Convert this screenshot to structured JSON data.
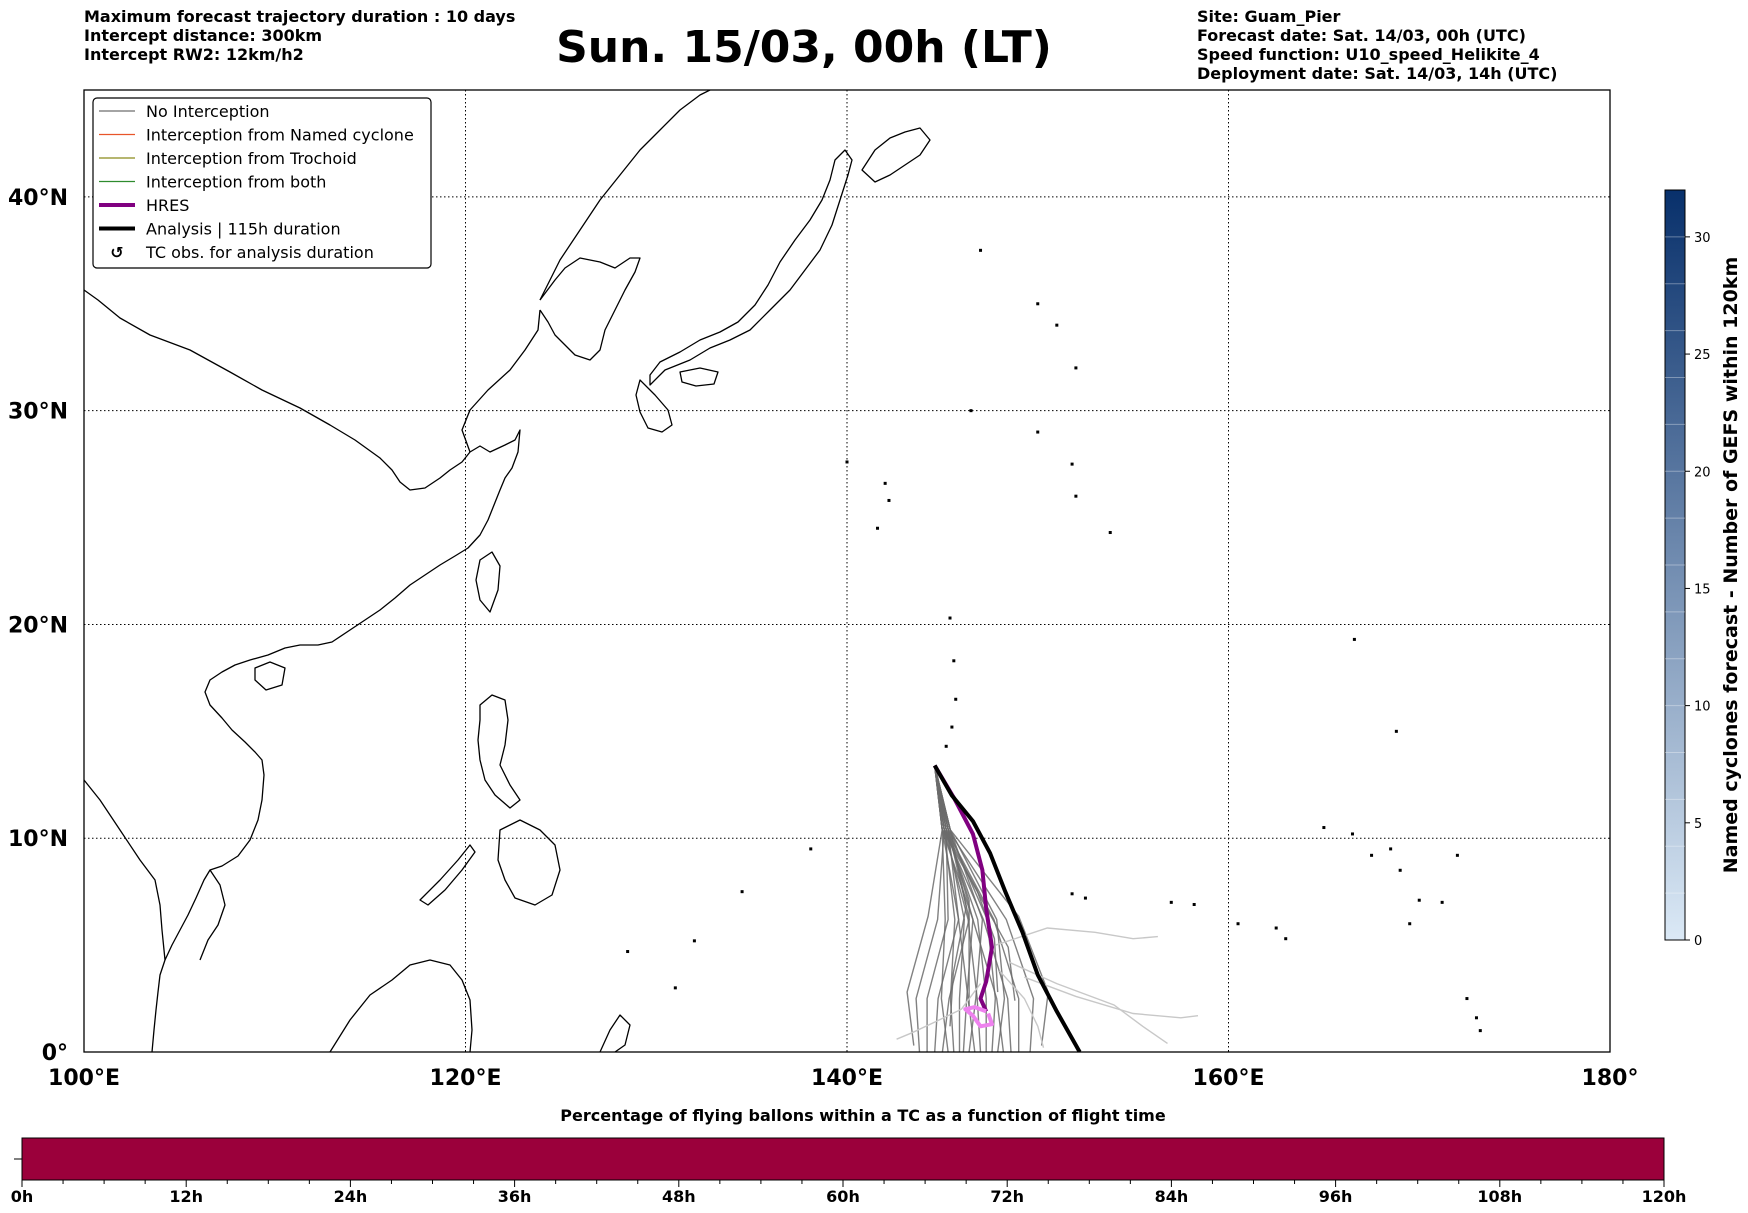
{
  "header": {
    "left_lines": [
      "Maximum forecast trajectory duration : 10 days",
      "Intercept distance: 300km",
      "Intercept RW2: 12km/h2"
    ],
    "title": "Sun. 15/03, 00h (LT)",
    "right_lines": [
      "Site: Guam_Pier",
      "Forecast date: Sat. 14/03, 00h (UTC)",
      "Speed function: U10_speed_Helikite_4",
      "Deployment date: Sat. 14/03, 14h (UTC)"
    ]
  },
  "map": {
    "lon_range": [
      100,
      180
    ],
    "lat_range": [
      0,
      45
    ],
    "lon_ticks": [
      {
        "value": 100,
        "label": "100°E"
      },
      {
        "value": 120,
        "label": "120°E"
      },
      {
        "value": 140,
        "label": "140°E"
      },
      {
        "value": 160,
        "label": "160°E"
      },
      {
        "value": 180,
        "label": "180°"
      }
    ],
    "lat_ticks": [
      {
        "value": 0,
        "label": "0°"
      },
      {
        "value": 10,
        "label": "10°N"
      },
      {
        "value": 20,
        "label": "20°N"
      },
      {
        "value": 30,
        "label": "30°N"
      },
      {
        "value": 40,
        "label": "40°N"
      }
    ],
    "gridlines": "dotted",
    "legend_position": "top-left",
    "legend": [
      {
        "label": "No Interception",
        "color": "#6e6e6e",
        "kind": "thin"
      },
      {
        "label": "Interception from Named cyclone",
        "color": "#e8552a",
        "kind": "thin"
      },
      {
        "label": "Interception from Trochoid",
        "color": "#8a8a1a",
        "kind": "thin"
      },
      {
        "label": "Interception from both",
        "color": "#2e8b2e",
        "kind": "thin"
      },
      {
        "label": "HRES",
        "color": "#800080",
        "kind": "thick"
      },
      {
        "label": "Analysis | 115h duration",
        "color": "#000000",
        "kind": "thick"
      },
      {
        "label": "TC obs. for analysis duration",
        "color": "#000000",
        "kind": "symbol"
      }
    ],
    "deployment_site": {
      "lon": 144.6,
      "lat": 13.4
    },
    "analysis_track": [
      [
        144.6,
        13.4
      ],
      [
        145.5,
        12.0
      ],
      [
        146.6,
        10.8
      ],
      [
        147.5,
        9.3
      ],
      [
        148.3,
        7.5
      ],
      [
        149.2,
        5.6
      ],
      [
        150.0,
        3.6
      ],
      [
        151.0,
        1.9
      ],
      [
        152.2,
        0.0
      ]
    ],
    "hres_track": [
      [
        144.6,
        13.4
      ],
      [
        145.6,
        11.9
      ],
      [
        146.6,
        10.2
      ],
      [
        147.1,
        8.5
      ],
      [
        147.3,
        6.7
      ],
      [
        147.6,
        4.9
      ],
      [
        147.3,
        3.3
      ],
      [
        147.0,
        2.5
      ],
      [
        147.3,
        1.9
      ]
    ],
    "hres_tail": [
      [
        147.3,
        1.9
      ],
      [
        146.7,
        2.1
      ],
      [
        146.2,
        2.0
      ],
      [
        146.6,
        1.7
      ],
      [
        147.0,
        1.2
      ],
      [
        147.6,
        1.3
      ],
      [
        147.4,
        1.8
      ]
    ],
    "ensemble_colors": {
      "dark": "#6b6b6b",
      "light": "#c8c8c8",
      "tail": "#ee82ee"
    }
  },
  "colorbar_right": {
    "label": "Named cyclones forecast - Number of GEFS within 120km",
    "min": 0,
    "max": 32,
    "ticks": [
      "0",
      "5",
      "10",
      "15",
      "20",
      "25",
      "30"
    ],
    "color_low": "#dbe9f6",
    "color_high": "#08306b"
  },
  "bottom_bar": {
    "title": "Percentage of flying ballons within a TC as a function of flight time",
    "color": "#9b003b",
    "ticks": [
      "0h",
      "12h",
      "24h",
      "36h",
      "48h",
      "60h",
      "72h",
      "84h",
      "96h",
      "108h",
      "120h"
    ]
  }
}
